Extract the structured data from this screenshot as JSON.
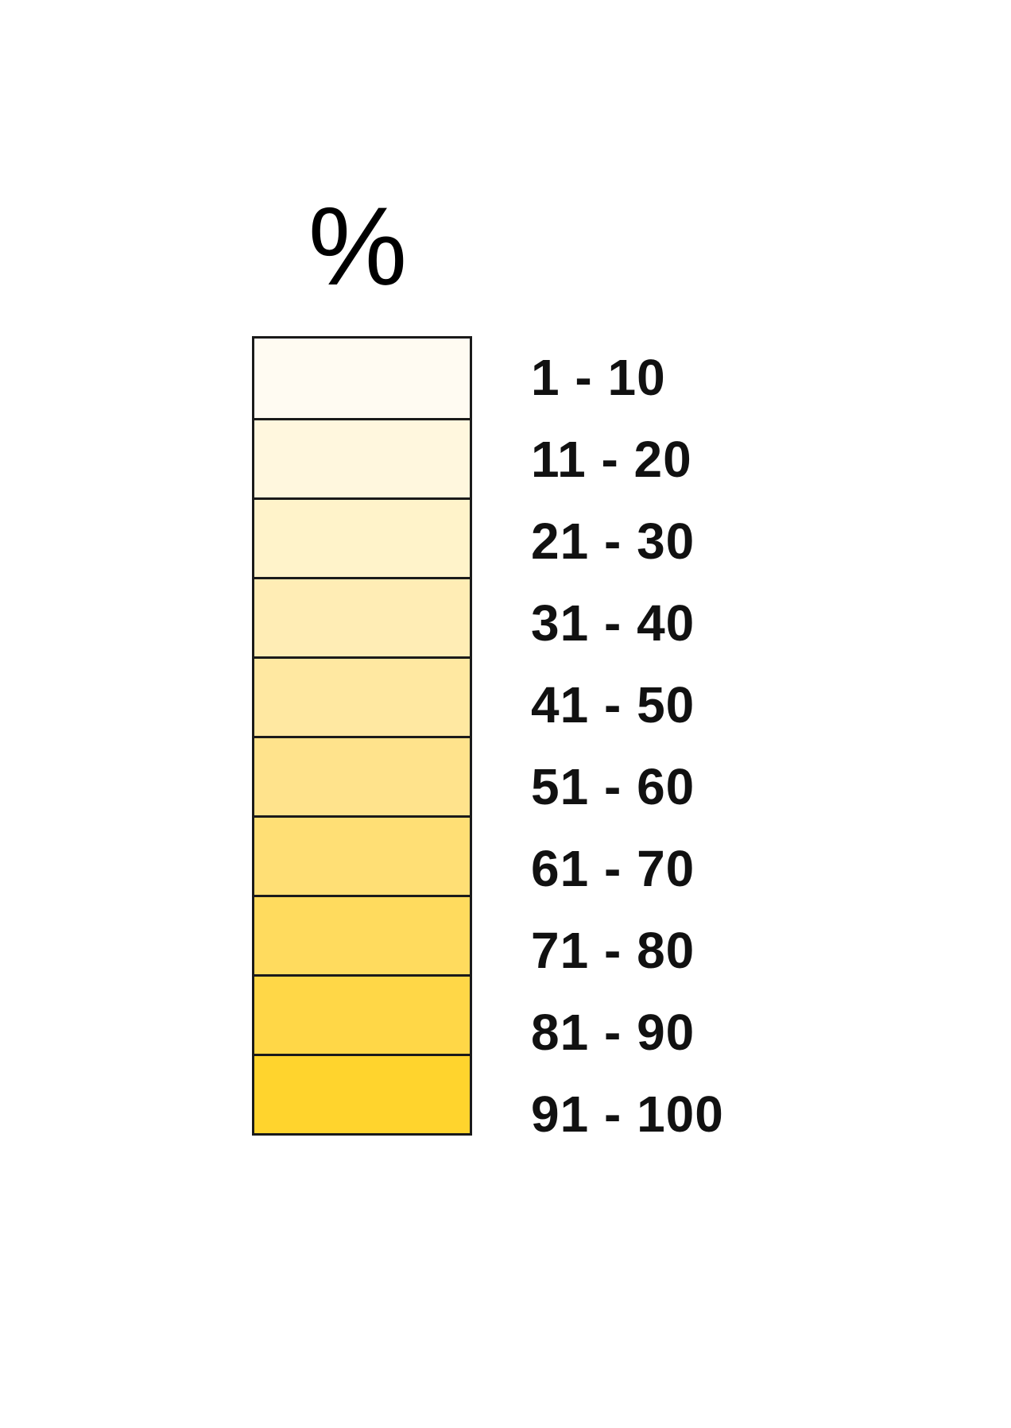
{
  "legend": {
    "title": "%",
    "items": [
      {
        "label": "1 - 10",
        "color": "#fffbf2"
      },
      {
        "label": "11 - 20",
        "color": "#fff7de"
      },
      {
        "label": "21 - 30",
        "color": "#fff3ca"
      },
      {
        "label": "31 - 40",
        "color": "#ffedb5"
      },
      {
        "label": "41 - 50",
        "color": "#ffe8a1"
      },
      {
        "label": "51 - 60",
        "color": "#ffe38c"
      },
      {
        "label": "61 - 70",
        "color": "#ffdf75"
      },
      {
        "label": "71 - 80",
        "color": "#ffdb5e"
      },
      {
        "label": "81 - 90",
        "color": "#ffd747"
      },
      {
        "label": "91 - 100",
        "color": "#ffd42d"
      }
    ]
  }
}
